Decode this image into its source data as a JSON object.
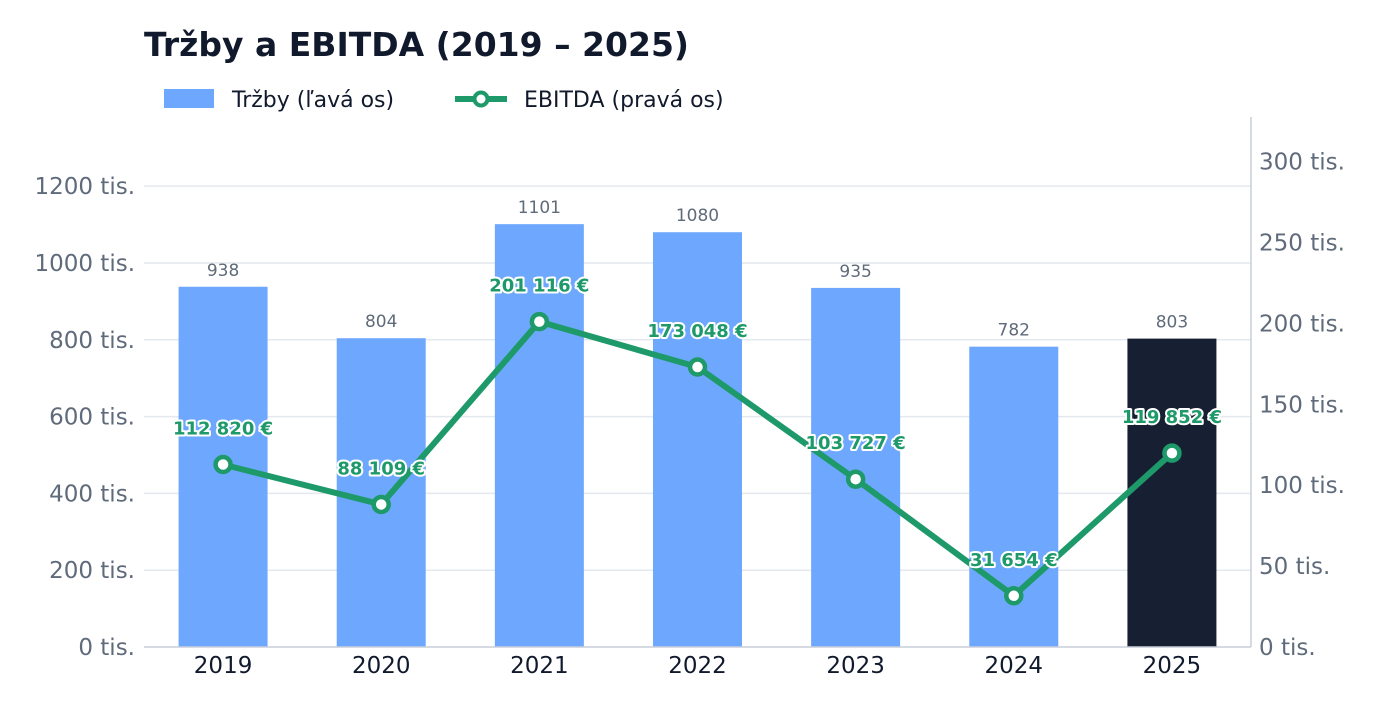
{
  "chart_data": {
    "type": "bar",
    "title": "Tržby a EBITDA (2019 – 2025)",
    "categories": [
      "2019",
      "2020",
      "2021",
      "2022",
      "2023",
      "2024",
      "2025"
    ],
    "series": [
      {
        "name": "Tržby (ľavá os)",
        "type": "bar",
        "axis": "left",
        "values": [
          938000,
          804000,
          1101000,
          1080000,
          935000,
          782000,
          803000
        ],
        "value_labels": [
          "938",
          "804",
          "1101",
          "1080",
          "935",
          "782",
          "803"
        ],
        "color": "#6ea8fe",
        "highlight_color": "#172033",
        "highlight_index": 6
      },
      {
        "name": "EBITDA (pravá os)",
        "type": "line",
        "axis": "right",
        "values": [
          112820,
          88109,
          201116,
          173048,
          103727,
          31654,
          119852
        ],
        "value_labels": [
          "112 820 €",
          "88 109 €",
          "201 116 €",
          "173 048 €",
          "103 727 €",
          "31 654 €",
          "119 852 €"
        ],
        "color": "#1e9a6a"
      }
    ],
    "y_left": {
      "ylim": [
        0,
        1380000
      ],
      "ticks": [
        0,
        200000,
        400000,
        600000,
        800000,
        1000000,
        1200000
      ],
      "tick_labels": [
        "0 tis.",
        "200 tis.",
        "400 tis.",
        "600 tis.",
        "800 tis.",
        "1000 tis.",
        "1200 tis."
      ]
    },
    "y_right": {
      "ylim": [
        0,
        327600
      ],
      "ticks": [
        0,
        50000,
        100000,
        150000,
        200000,
        250000,
        300000
      ],
      "tick_labels": [
        "0 tis.",
        "50 tis.",
        "100 tis.",
        "150 tis.",
        "200 tis.",
        "250 tis.",
        "300 tis."
      ]
    },
    "grid": true,
    "legend_position": "top-left"
  }
}
